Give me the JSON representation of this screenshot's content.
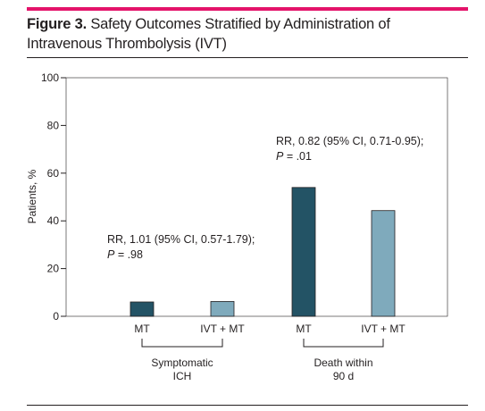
{
  "figure": {
    "label": "Figure 3.",
    "title": "Safety Outcomes Stratified by Administration of Intravenous Thrombolysis (IVT)"
  },
  "chart_data": {
    "type": "bar",
    "ylabel": "Patients, %",
    "ylim": [
      0,
      100
    ],
    "yticks": [
      0,
      20,
      40,
      60,
      80,
      100
    ],
    "grid": false,
    "groups": [
      {
        "name": "Symptomatic ICH",
        "name_lines": [
          "Symptomatic",
          "ICH"
        ],
        "annotation_lines": [
          "RR, 1.01 (95% CI, 0.57-1.79);",
          "P = .98"
        ],
        "bars": [
          {
            "category": "MT",
            "value": 6,
            "color": "#235365"
          },
          {
            "category": "IVT + MT",
            "value": 6.2,
            "color": "#7faabc"
          }
        ]
      },
      {
        "name": "Death within 90 d",
        "name_lines": [
          "Death within",
          "90 d"
        ],
        "annotation_lines": [
          "RR, 0.82 (95% CI, 0.71-0.95);",
          "P = .01"
        ],
        "bars": [
          {
            "category": "MT",
            "value": 54,
            "color": "#235365"
          },
          {
            "category": "IVT + MT",
            "value": 44.3,
            "color": "#7faabc"
          }
        ]
      }
    ]
  },
  "colors": {
    "accent": "#e4136a",
    "mt": "#235365",
    "ivt_mt": "#7faabc"
  }
}
